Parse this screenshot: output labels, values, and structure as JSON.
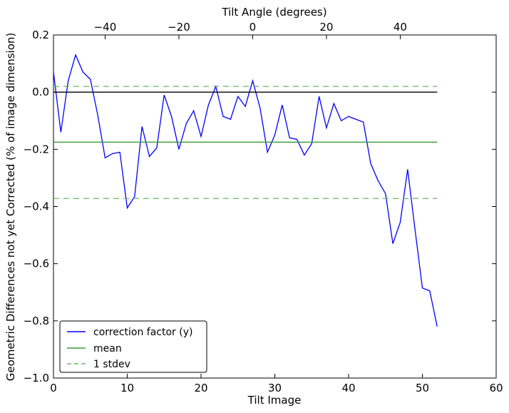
{
  "chart_data": {
    "type": "line",
    "xlabel": "Tilt Image",
    "ylabel": "Geometric Differences not yet Corrected (% of image dimension)",
    "top_xlabel": "Tilt Angle (degrees)",
    "xlim": [
      0,
      60
    ],
    "ylim": [
      -1.0,
      0.2
    ],
    "top_xlim": [
      -54,
      66
    ],
    "x_ticks": [
      0,
      10,
      20,
      30,
      40,
      50,
      60
    ],
    "x_tick_labels": [
      "0",
      "10",
      "20",
      "30",
      "40",
      "50",
      "60"
    ],
    "y_ticks": [
      -1.0,
      -0.8,
      -0.6,
      -0.4,
      -0.2,
      0.0,
      0.2
    ],
    "y_tick_labels": [
      "−1.0",
      "−0.8",
      "−0.6",
      "−0.4",
      "−0.2",
      "0.0",
      "0.2"
    ],
    "top_ticks": [
      -40,
      -20,
      0,
      20,
      40
    ],
    "top_tick_labels": [
      "−40",
      "−20",
      "0",
      "20",
      "40"
    ],
    "grid": false,
    "legend_position": "lower-left",
    "series": [
      {
        "name": "correction factor (y)",
        "color": "#0000ff",
        "style": "solid",
        "x": [
          0,
          1,
          2,
          3,
          4,
          5,
          6,
          7,
          8,
          9,
          10,
          11,
          12,
          13,
          14,
          15,
          16,
          17,
          18,
          19,
          20,
          21,
          22,
          23,
          24,
          25,
          26,
          27,
          28,
          29,
          30,
          31,
          32,
          33,
          34,
          35,
          36,
          37,
          38,
          39,
          40,
          41,
          42,
          43,
          44,
          45,
          46,
          47,
          48,
          49,
          50,
          51,
          52
        ],
        "y": [
          0.07,
          -0.14,
          0.04,
          0.13,
          0.07,
          0.045,
          -0.08,
          -0.23,
          -0.215,
          -0.21,
          -0.405,
          -0.365,
          -0.12,
          -0.225,
          -0.195,
          -0.01,
          -0.085,
          -0.2,
          -0.11,
          -0.065,
          -0.155,
          -0.045,
          0.02,
          -0.085,
          -0.095,
          -0.015,
          -0.05,
          0.04,
          -0.055,
          -0.21,
          -0.15,
          -0.045,
          -0.16,
          -0.165,
          -0.22,
          -0.18,
          -0.015,
          -0.125,
          -0.04,
          -0.1,
          -0.085,
          -0.095,
          -0.105,
          -0.25,
          -0.31,
          -0.355,
          -0.53,
          -0.455,
          -0.27,
          -0.48,
          -0.685,
          -0.695,
          -0.82
        ]
      },
      {
        "name": "mean",
        "color": "#3a9a3a",
        "style": "solid",
        "x": [
          0,
          52
        ],
        "y": [
          -0.175,
          -0.175
        ]
      },
      {
        "name": "1 stdev",
        "color": "#6ab86a",
        "style": "dashed",
        "x": [
          0,
          52
        ],
        "y": [
          0.02,
          0.02
        ]
      },
      {
        "name": "",
        "color": "#6ab86a",
        "style": "dashed",
        "x": [
          0,
          52
        ],
        "y": [
          -0.372,
          -0.372
        ]
      },
      {
        "name": "",
        "color": "#000000",
        "style": "solid",
        "x": [
          0,
          52
        ],
        "y": [
          0.0,
          0.0
        ]
      }
    ],
    "legend": [
      "correction factor (y)",
      "mean",
      "1 stdev"
    ]
  }
}
